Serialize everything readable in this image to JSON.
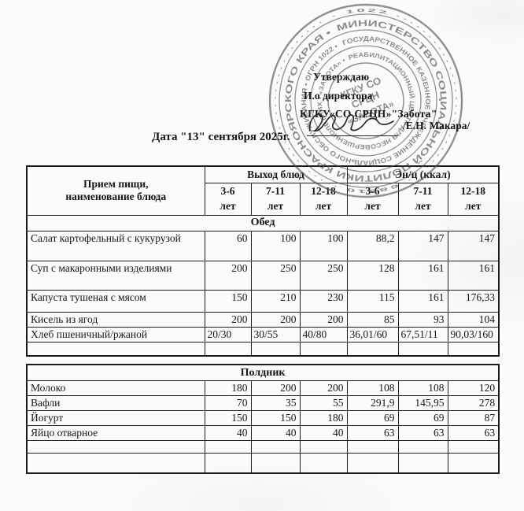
{
  "colors": {
    "ink": "#161616",
    "stamp_ink": "#4f4f4f",
    "border": "#1a1a1a",
    "paper": "#fbfbf9"
  },
  "approval": {
    "line1": "Утверждаю",
    "line2": "И.о директора",
    "line3": "КГКУ«СО СРЦН»\"Забота\"",
    "signature_name": "/Е.Н. Макара/",
    "date_line": "Дата \"13\" сентября 2025г."
  },
  "stamp": {
    "micro_ring": "· 1022 ···························· 68810 ····························",
    "ring1": "МИНИСТЕРСТВО  СОЦИАЛЬНОЙ  ПОЛИТИКИ  КРАСНОЯРСКОГО  КРАЯ  •",
    "ring2": "ГОСУДАРСТВЕННОЕ КАЗЕННОЕ УЧРЕЖДЕНИЕ СОЦИАЛЬНОГО ОБСЛУЖИВАНИЯ • ОГРН 1022 •",
    "ring3": "РЕАБИЛИТАЦИОННЫЙ ЦЕНТР ДЛЯ НЕСОВЕРШЕННОЛЕТНИХ • «ЗАБОТА» •",
    "center_line1": "КГКУ СО",
    "center_line2": "СРЦН",
    "center_line3": "«ЗАБОТА»"
  },
  "menu": {
    "header": {
      "meal_line1": "Прием пищи,",
      "meal_line2": "наименование блюда",
      "group1": "Выход блюд",
      "group2": "Эн/ц (ккал)",
      "ages": [
        "3-6\nлет",
        "7-11\nлет",
        "12-18\nлет",
        "3-6\nлет",
        "7-11\nлет",
        "12-18\nлет"
      ]
    },
    "lunch": {
      "title": "Обед",
      "rows": [
        {
          "name": "Салат картофельный с кукурузой",
          "values": [
            "60",
            "100",
            "100",
            "88,2",
            "147",
            "147"
          ]
        },
        {
          "name": "Суп с макаронными изделиями",
          "values": [
            "200",
            "250",
            "250",
            "128",
            "161",
            "161"
          ]
        },
        {
          "name": "Капуста тушеная  с мясом",
          "values": [
            "150",
            "210",
            "230",
            "115",
            "161",
            "176,33"
          ]
        },
        {
          "name": "Кисель из ягод",
          "values": [
            "200",
            "200",
            "200",
            "85",
            "93",
            "104"
          ]
        },
        {
          "name": "Хлеб пшеничный/ржаной",
          "align": "left",
          "values": [
            "20/30",
            "30/55",
            "40/80",
            "36,01/60",
            "67,51/11",
            "90,03/160"
          ]
        },
        {
          "name": "",
          "values": [
            "",
            "",
            "",
            "",
            "",
            ""
          ]
        }
      ]
    },
    "snack": {
      "title": "Полдник",
      "rows": [
        {
          "name": "Молоко",
          "values": [
            "180",
            "200",
            "200",
            "108",
            "108",
            "120"
          ]
        },
        {
          "name": "Вафли",
          "values": [
            "70",
            "35",
            "55",
            "291,9",
            "145,95",
            "278"
          ]
        },
        {
          "name": "Йогурт",
          "values": [
            "150",
            "150",
            "180",
            "69",
            "69",
            "87"
          ]
        },
        {
          "name": "Яйцо отварное",
          "values": [
            "40",
            "40",
            "40",
            "63",
            "63",
            "63"
          ]
        },
        {
          "name": "",
          "values": [
            "",
            "",
            "",
            "",
            "",
            ""
          ]
        },
        {
          "name": "",
          "values": [
            "",
            "",
            "",
            "",
            "",
            ""
          ]
        }
      ]
    }
  }
}
